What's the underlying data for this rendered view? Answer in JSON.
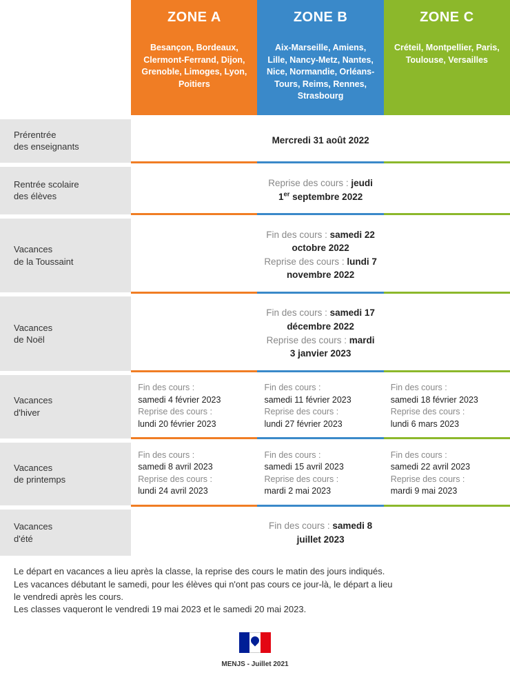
{
  "colors": {
    "zoneA": "#f07d24",
    "zoneB": "#3a89c9",
    "zoneC": "#8cb82b"
  },
  "zones": {
    "a": {
      "title": "ZONE A",
      "cities": "Besançon, Bordeaux, Clermont-Ferrand, Dijon, Grenoble, Limoges, Lyon, Poitiers"
    },
    "b": {
      "title": "ZONE B",
      "cities": "Aix-Marseille, Amiens, Lille, Nancy-Metz, Nantes, Nice, Normandie, Orléans-Tours, Reims, Rennes, Strasbourg"
    },
    "c": {
      "title": "ZONE C",
      "cities": "Créteil, Montpellier, Paris, Toulouse, Versailles"
    }
  },
  "rows": {
    "prerentree": {
      "label": "Prérentrée\ndes enseignants",
      "merged_html": "<span class='bold'>Mercredi 31 août 2022</span>"
    },
    "rentree": {
      "label": "Rentrée scolaire\ndes élèves",
      "merged_html": "<span class='gray'>Reprise des cours :</span> <span class='bold'>jeudi 1<sup>er</sup> septembre 2022</span>"
    },
    "toussaint": {
      "label": "Vacances\nde la Toussaint",
      "merged_html": "<span class='gray'>Fin des cours :</span> <span class='bold'>samedi 22 octobre 2022</span><br><span class='gray'>Reprise des cours :</span> <span class='bold'>lundi 7 novembre 2022</span>"
    },
    "noel": {
      "label": "Vacances\nde Noël",
      "merged_html": "<span class='gray'>Fin des cours :</span> <span class='bold'>samedi 17 décembre 2022</span><br><span class='gray'>Reprise des cours :</span> <span class='bold'>mardi 3 janvier 2023</span>"
    },
    "hiver": {
      "label": "Vacances\nd'hiver",
      "a": "<span class='gray'>Fin des cours :</span><br><span class='bold'>samedi 4 février 2023</span><br><span class='gray'>Reprise des cours :</span><br><span class='bold'>lundi 20 février 2023</span>",
      "b": "<span class='gray'>Fin des cours :</span><br><span class='bold'>samedi 11 février 2023</span><br><span class='gray'>Reprise des cours :</span><br><span class='bold'>lundi 27 février 2023</span>",
      "c": "<span class='gray'>Fin des cours :</span><br><span class='bold'>samedi 18 février 2023</span><br><span class='gray'>Reprise des cours :</span><br><span class='bold'>lundi 6 mars 2023</span>"
    },
    "printemps": {
      "label": "Vacances\nde printemps",
      "a": "<span class='gray'>Fin des cours :</span><br><span class='bold'>samedi 8 avril 2023</span><br><span class='gray'>Reprise des cours :</span><br><span class='bold'>lundi 24 avril 2023</span>",
      "b": "<span class='gray'>Fin des cours :</span><br><span class='bold'>samedi 15 avril 2023</span><br><span class='gray'>Reprise des cours :</span><br><span class='bold'>mardi 2 mai 2023</span>",
      "c": "<span class='gray'>Fin des cours :</span><br><span class='bold'>samedi 22 avril 2023</span><br><span class='gray'>Reprise des cours :</span><br><span class='bold'>mardi 9 mai 2023</span>"
    },
    "ete": {
      "label": "Vacances\nd'été",
      "merged_html": "<span class='gray'>Fin des cours :</span> <span class='bold'>samedi 8 juillet 2023</span>"
    }
  },
  "footer": "Le départ en vacances a lieu après la classe, la reprise des cours le matin des jours indiqués.\nLes vacances débutant le samedi, pour les élèves qui n'ont pas cours ce jour-là, le départ a lieu\nle vendredi après les cours.\nLes classes vaqueront le vendredi 19 mai 2023 et le samedi 20 mai 2023.",
  "logo_caption": "MENJS - Juillet 2021"
}
